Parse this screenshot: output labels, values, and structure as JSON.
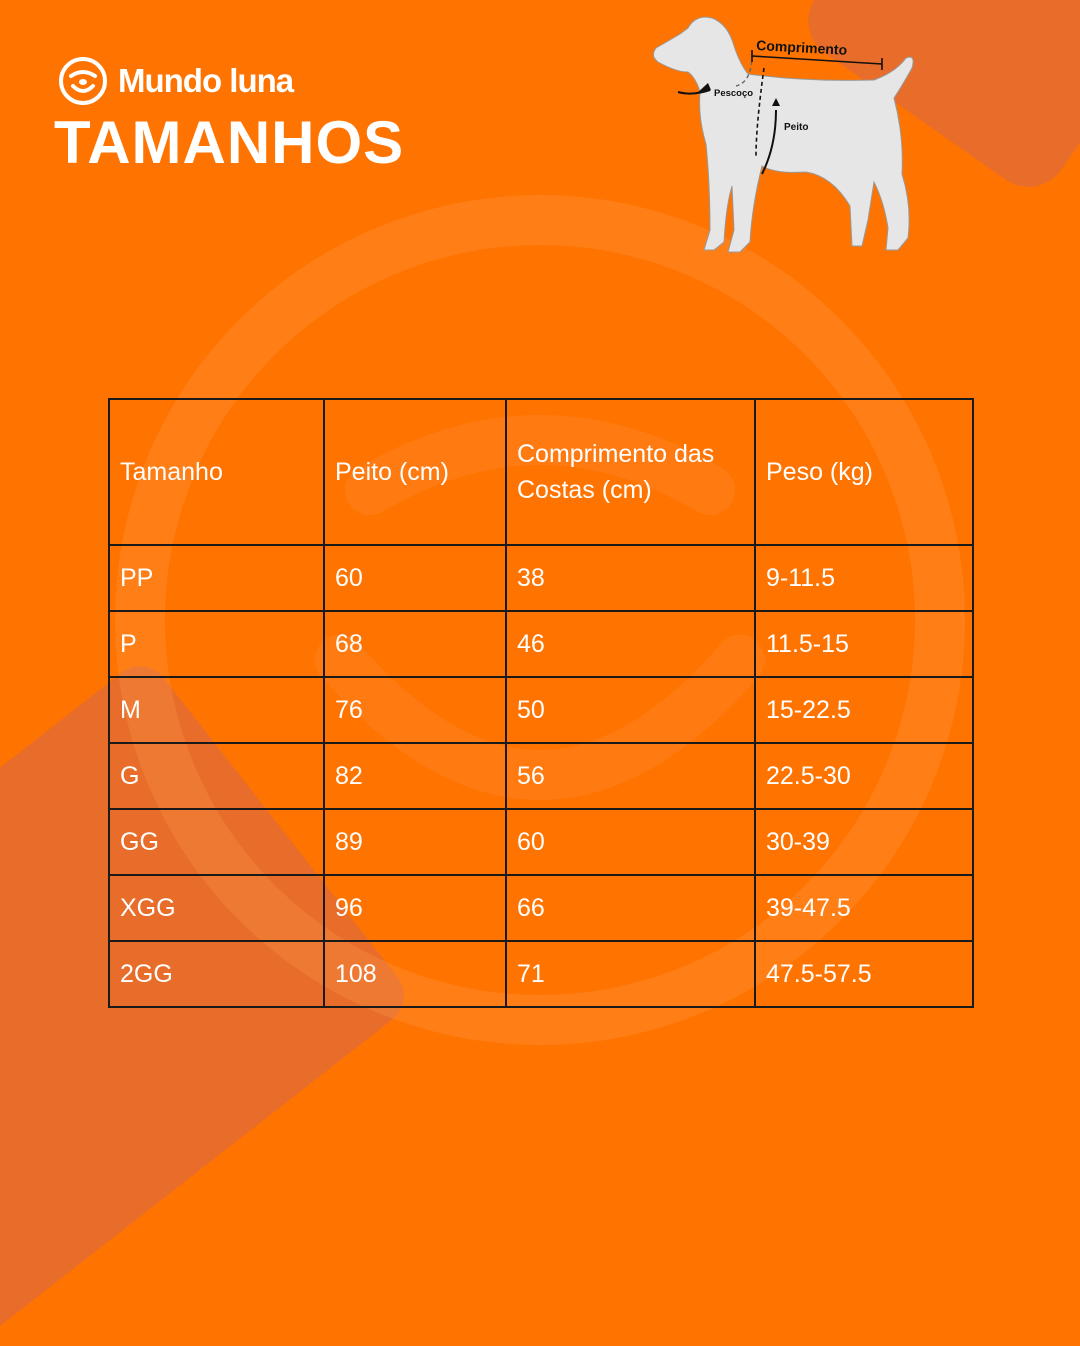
{
  "brand": {
    "name": "Mundo luna",
    "icon": "dog-face-icon"
  },
  "title": "TAMANHOS",
  "diagram": {
    "labels": {
      "length": "Comprimento",
      "neck": "Pescoço",
      "chest": "Peito"
    }
  },
  "table": {
    "headers": [
      "Tamanho",
      "Peito (cm)",
      "Comprimento das Costas (cm)",
      "Peso (kg)"
    ],
    "rows": [
      [
        "PP",
        "60",
        "38",
        "9-11.5"
      ],
      [
        "P",
        "68",
        "46",
        "11.5-15"
      ],
      [
        "M",
        "76",
        "50",
        "15-22.5"
      ],
      [
        "G",
        "82",
        "56",
        "22.5-30"
      ],
      [
        "GG",
        "89",
        "60",
        "30-39"
      ],
      [
        "XGG",
        "96",
        "66",
        "39-47.5"
      ],
      [
        "2GG",
        "108",
        "71",
        "47.5-57.5"
      ]
    ]
  },
  "colors": {
    "background": "#ff7300",
    "accent_shape": "#e86d2a",
    "text": "#ffffff",
    "grid": "#1a1a1a",
    "dog": "#e6e6e6"
  }
}
